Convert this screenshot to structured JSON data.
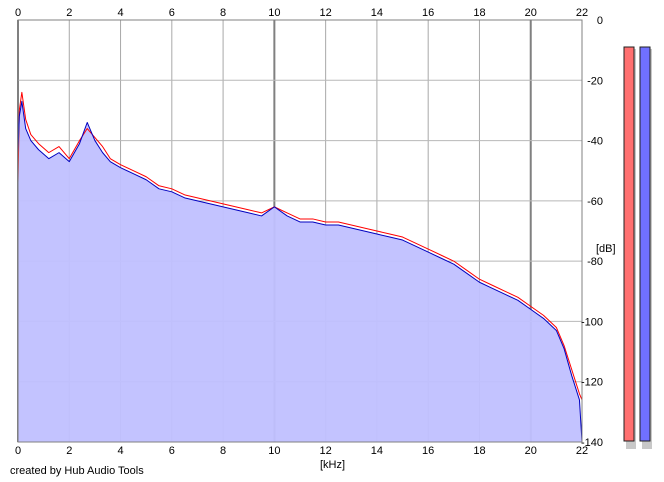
{
  "chart_data": {
    "type": "line",
    "title": "",
    "xlabel": "[kHz]",
    "ylabel": "[dB]",
    "xlim": [
      0,
      22
    ],
    "ylim": [
      -140,
      0
    ],
    "x_ticks": [
      "0",
      "2",
      "4",
      "6",
      "8",
      "10",
      "12",
      "14",
      "16",
      "18",
      "20",
      "22"
    ],
    "y_ticks": [
      "0",
      "-20",
      "-40",
      "-60",
      "-80",
      "-100",
      "-120",
      "-140"
    ],
    "grid": true,
    "fill_color": "#c0c0ff",
    "series": [
      {
        "color": "#ff0000",
        "x": [
          0,
          0.05,
          0.15,
          0.3,
          0.5,
          0.8,
          1.2,
          1.6,
          2.0,
          2.4,
          2.7,
          3.0,
          3.3,
          3.6,
          4.0,
          4.5,
          5.0,
          5.5,
          6.0,
          6.5,
          7.0,
          7.5,
          8.0,
          8.5,
          9.0,
          9.5,
          10.0,
          10.5,
          11.0,
          11.5,
          12.0,
          12.5,
          13.0,
          13.5,
          14.0,
          14.5,
          15.0,
          15.5,
          16.0,
          16.5,
          17.0,
          17.5,
          18.0,
          18.5,
          19.0,
          19.5,
          20.0,
          20.5,
          21.0,
          21.3,
          21.6,
          21.9,
          22.0
        ],
        "y": [
          -54,
          -30,
          -24,
          -33,
          -38,
          -41,
          -44,
          -42,
          -46,
          -40,
          -36,
          -39,
          -42,
          -46,
          -48,
          -50,
          -52,
          -55,
          -56,
          -58,
          -59,
          -60,
          -61,
          -62,
          -63,
          -64,
          -62,
          -64,
          -66,
          -66,
          -67,
          -67,
          -68,
          -69,
          -70,
          -71,
          -72,
          -74,
          -76,
          -78,
          -80,
          -83,
          -86,
          -88,
          -90,
          -92,
          -95,
          -98,
          -102,
          -108,
          -116,
          -124,
          -126
        ]
      },
      {
        "color": "#0000c0",
        "x": [
          0,
          0.05,
          0.15,
          0.3,
          0.5,
          0.8,
          1.2,
          1.6,
          2.0,
          2.4,
          2.7,
          3.0,
          3.3,
          3.6,
          4.0,
          4.5,
          5.0,
          5.5,
          6.0,
          6.5,
          7.0,
          7.5,
          8.0,
          8.5,
          9.0,
          9.5,
          10.0,
          10.5,
          11.0,
          11.5,
          12.0,
          12.5,
          13.0,
          13.5,
          14.0,
          14.5,
          15.0,
          15.5,
          16.0,
          16.5,
          17.0,
          17.5,
          18.0,
          18.5,
          19.0,
          19.5,
          20.0,
          20.5,
          21.0,
          21.3,
          21.6,
          21.9,
          22.0
        ],
        "y": [
          -44,
          -32,
          -27,
          -36,
          -40,
          -43,
          -46,
          -44,
          -47,
          -41,
          -34,
          -40,
          -44,
          -47,
          -49,
          -51,
          -53,
          -56,
          -57,
          -59,
          -60,
          -61,
          -62,
          -63,
          -64,
          -65,
          -62,
          -65,
          -67,
          -67,
          -68,
          -68,
          -69,
          -70,
          -71,
          -72,
          -73,
          -75,
          -77,
          -79,
          -81,
          -84,
          -87,
          -89,
          -91,
          -93,
          -96,
          -99,
          -103,
          -109,
          -118,
          -126,
          -140
        ]
      }
    ]
  },
  "meters": [
    {
      "color": "#ff7070",
      "level": 1.0
    },
    {
      "color": "#7070ff",
      "level": 1.0
    }
  ],
  "credit": "created by Hub Audio Tools"
}
